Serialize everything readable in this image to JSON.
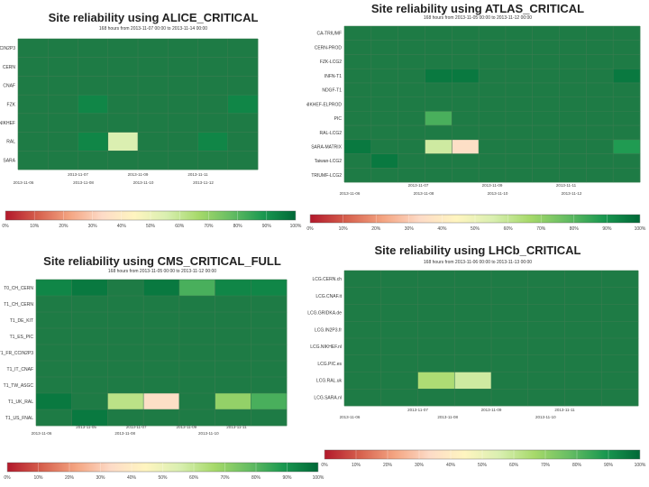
{
  "chart_data": [
    {
      "type": "heatmap",
      "title": "Site reliability using ALICE_CRITICAL",
      "subtitle": "168 hours from 2013-11-07 00:00 to 2013-11-14 00:00",
      "rows": [
        "CCIN2P3",
        "CERN",
        "CNAF",
        "FZK",
        "NIKHEF",
        "RAL",
        "SARA"
      ],
      "x_ticks": [
        "2013-11-06",
        "2013-11-08",
        "2013-11-10",
        "2013-11-12"
      ],
      "x_ticks_alt": [
        "2013-11-07",
        "2013-11-09",
        "2013-11-11"
      ],
      "legend_ticks": [
        "0%",
        "10%",
        "20%",
        "30%",
        "40%",
        "50%",
        "60%",
        "70%",
        "80%",
        "90%",
        "100%"
      ],
      "values": [
        [
          100,
          100,
          100,
          100,
          100,
          100,
          100,
          100
        ],
        [
          100,
          100,
          100,
          100,
          100,
          100,
          100,
          100
        ],
        [
          100,
          100,
          100,
          100,
          100,
          100,
          100,
          100
        ],
        [
          100,
          100,
          93,
          100,
          100,
          100,
          100,
          93
        ],
        [
          100,
          100,
          100,
          100,
          100,
          100,
          100,
          100
        ],
        [
          100,
          100,
          93,
          55,
          100,
          100,
          93,
          100
        ],
        [
          100,
          100,
          100,
          100,
          100,
          100,
          100,
          100
        ]
      ]
    },
    {
      "type": "heatmap",
      "title": "Site reliability using ATLAS_CRITICAL",
      "subtitle": "168 hours from 2013-11-05 00:00 to 2013-11-12 00:00",
      "rows": [
        "CA-TRIUMF",
        "CERN-PROD",
        "FZK-LCG2",
        "INFN-T1",
        "NDGF-T1",
        "NIKHEF-ELPROD",
        "PIC",
        "RAL-LCG2",
        "SARA-MATRIX",
        "Taiwan-LCG2",
        "TRIUMF-LCG2"
      ],
      "x_ticks": [
        "2013-11-06",
        "2013-11-08",
        "2013-11-10",
        "2013-11-12"
      ],
      "x_ticks_alt": [
        "2013-11-07",
        "2013-11-09",
        "2013-11-11"
      ],
      "legend_ticks": [
        "0%",
        "10%",
        "20%",
        "30%",
        "40%",
        "50%",
        "60%",
        "70%",
        "80%",
        "90%",
        "100%"
      ],
      "values": [
        [
          100,
          100,
          100,
          100,
          100,
          100,
          100,
          100,
          100,
          100,
          100
        ],
        [
          100,
          100,
          100,
          100,
          100,
          100,
          100,
          100,
          100,
          100,
          100
        ],
        [
          100,
          100,
          100,
          100,
          100,
          100,
          100,
          100,
          100,
          100,
          100
        ],
        [
          100,
          100,
          100,
          96,
          96,
          100,
          100,
          100,
          100,
          100,
          96
        ],
        [
          100,
          100,
          100,
          100,
          100,
          100,
          100,
          100,
          100,
          100,
          100
        ],
        [
          100,
          100,
          100,
          100,
          100,
          100,
          100,
          100,
          100,
          100,
          100
        ],
        [
          100,
          100,
          100,
          82,
          100,
          100,
          100,
          100,
          100,
          100,
          100
        ],
        [
          100,
          100,
          100,
          100,
          100,
          100,
          100,
          100,
          100,
          100,
          100
        ],
        [
          96,
          100,
          100,
          58,
          35,
          100,
          100,
          100,
          100,
          100,
          88
        ],
        [
          100,
          96,
          100,
          100,
          100,
          100,
          100,
          100,
          100,
          100,
          100
        ],
        [
          100,
          100,
          100,
          100,
          100,
          100,
          100,
          100,
          100,
          100,
          100
        ]
      ]
    },
    {
      "type": "heatmap",
      "title": "Site reliability using CMS_CRITICAL_FULL",
      "subtitle": "168 hours from 2013-11-05 00:00 to 2013-11-12 00:00",
      "rows": [
        "T0_CH_CERN",
        "T1_CH_CERN",
        "T1_DE_KIT",
        "T1_ES_PIC",
        "T1_FR_CCIN2P3",
        "T1_IT_CNAF",
        "T1_TW_ASGC",
        "T1_UK_RAL",
        "T1_US_FNAL"
      ],
      "x_ticks": [
        "2013-11-06",
        "2013-11-08",
        "2013-11-10"
      ],
      "x_ticks_alt": [
        "2013-11-05",
        "2013-11-07",
        "2013-11-09",
        "2013-11-11"
      ],
      "legend_ticks": [
        "0%",
        "10%",
        "20%",
        "30%",
        "40%",
        "50%",
        "60%",
        "70%",
        "80%",
        "90%",
        "100%"
      ],
      "values": [
        [
          93,
          96,
          100,
          96,
          82,
          93,
          93
        ],
        [
          100,
          100,
          100,
          100,
          100,
          100,
          100
        ],
        [
          100,
          100,
          100,
          100,
          100,
          100,
          100
        ],
        [
          100,
          100,
          100,
          100,
          100,
          100,
          100
        ],
        [
          100,
          100,
          100,
          100,
          100,
          100,
          100
        ],
        [
          100,
          100,
          100,
          100,
          100,
          100,
          100
        ],
        [
          100,
          100,
          100,
          100,
          100,
          100,
          100
        ],
        [
          96,
          100,
          62,
          35,
          100,
          70,
          82
        ],
        [
          100,
          96,
          100,
          100,
          100,
          100,
          100
        ]
      ]
    },
    {
      "type": "heatmap",
      "title": "Site reliability using LHCb_CRITICAL",
      "subtitle": "168 hours from 2013-11-06 00:00 to 2013-11-13 00:00",
      "rows": [
        "LCG.CERN.ch",
        "LCG.CNAF.it",
        "LCG.GRIDKA.de",
        "LCG.IN2P3.fr",
        "LCG.NIKHEF.nl",
        "LCG.PIC.es",
        "LCG.RAL.uk",
        "LCG.SARA.nl"
      ],
      "x_ticks": [
        "2013-11-06",
        "2013-11-08",
        "2013-11-10"
      ],
      "x_ticks_alt": [
        "2013-11-07",
        "2013-11-09",
        "2013-11-11"
      ],
      "legend_ticks": [
        "0%",
        "10%",
        "20%",
        "30%",
        "40%",
        "50%",
        "60%",
        "70%",
        "80%",
        "90%",
        "100%"
      ],
      "values": [
        [
          100,
          100,
          100,
          100,
          100,
          100,
          100,
          100
        ],
        [
          100,
          100,
          100,
          100,
          100,
          100,
          100,
          100
        ],
        [
          100,
          100,
          100,
          100,
          100,
          100,
          100,
          100
        ],
        [
          100,
          100,
          100,
          100,
          100,
          100,
          100,
          100
        ],
        [
          100,
          100,
          100,
          100,
          100,
          100,
          100,
          100
        ],
        [
          100,
          100,
          100,
          100,
          100,
          100,
          100,
          100
        ],
        [
          100,
          100,
          65,
          58,
          100,
          100,
          100,
          100
        ],
        [
          100,
          100,
          100,
          100,
          100,
          100,
          100,
          100
        ]
      ]
    }
  ],
  "colors": {
    "stops": [
      "#b2182b",
      "#d6604d",
      "#f4a582",
      "#fddbc7",
      "#fff5c0",
      "#d9efb0",
      "#a6d96a",
      "#66bd63",
      "#1a9850",
      "#006837"
    ],
    "cell_green": "#1e7b45",
    "grid": "#3a7c50",
    "bg": "#ffffff"
  }
}
